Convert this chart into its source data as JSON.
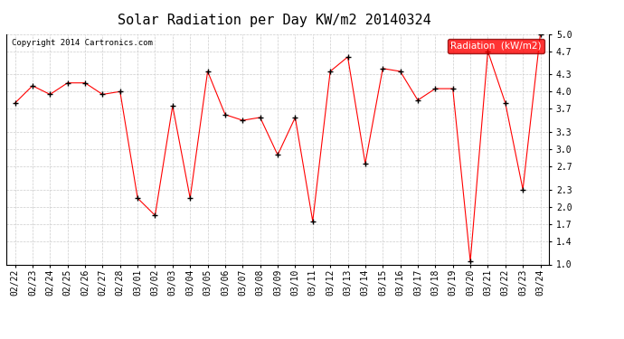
{
  "title": "Solar Radiation per Day KW/m2 20140324",
  "copyright": "Copyright 2014 Cartronics.com",
  "legend_label": "Radiation  (kW/m2)",
  "dates": [
    "02/22",
    "02/23",
    "02/24",
    "02/25",
    "02/26",
    "02/27",
    "02/28",
    "03/01",
    "03/02",
    "03/03",
    "03/04",
    "03/05",
    "03/06",
    "03/07",
    "03/08",
    "03/09",
    "03/10",
    "03/11",
    "03/12",
    "03/13",
    "03/14",
    "03/15",
    "03/16",
    "03/17",
    "03/18",
    "03/19",
    "03/20",
    "03/21",
    "03/22",
    "03/23",
    "03/24"
  ],
  "values": [
    3.8,
    4.1,
    3.95,
    4.15,
    4.15,
    3.95,
    4.0,
    2.15,
    1.85,
    3.75,
    2.15,
    4.35,
    3.6,
    3.5,
    3.55,
    2.9,
    3.55,
    1.75,
    4.35,
    4.6,
    2.75,
    4.4,
    4.35,
    3.85,
    4.05,
    4.05,
    1.05,
    4.7,
    3.8,
    2.3,
    5.0
  ],
  "ylim": [
    1.0,
    5.0
  ],
  "yticks": [
    1.0,
    1.4,
    1.7,
    2.0,
    2.3,
    2.7,
    3.0,
    3.3,
    3.7,
    4.0,
    4.3,
    4.7,
    5.0
  ],
  "line_color": "red",
  "marker_color": "black",
  "bg_color": "#ffffff",
  "grid_color": "#cccccc",
  "title_fontsize": 11,
  "tick_fontsize": 7,
  "legend_fontsize": 7.5,
  "copyright_fontsize": 6.5
}
